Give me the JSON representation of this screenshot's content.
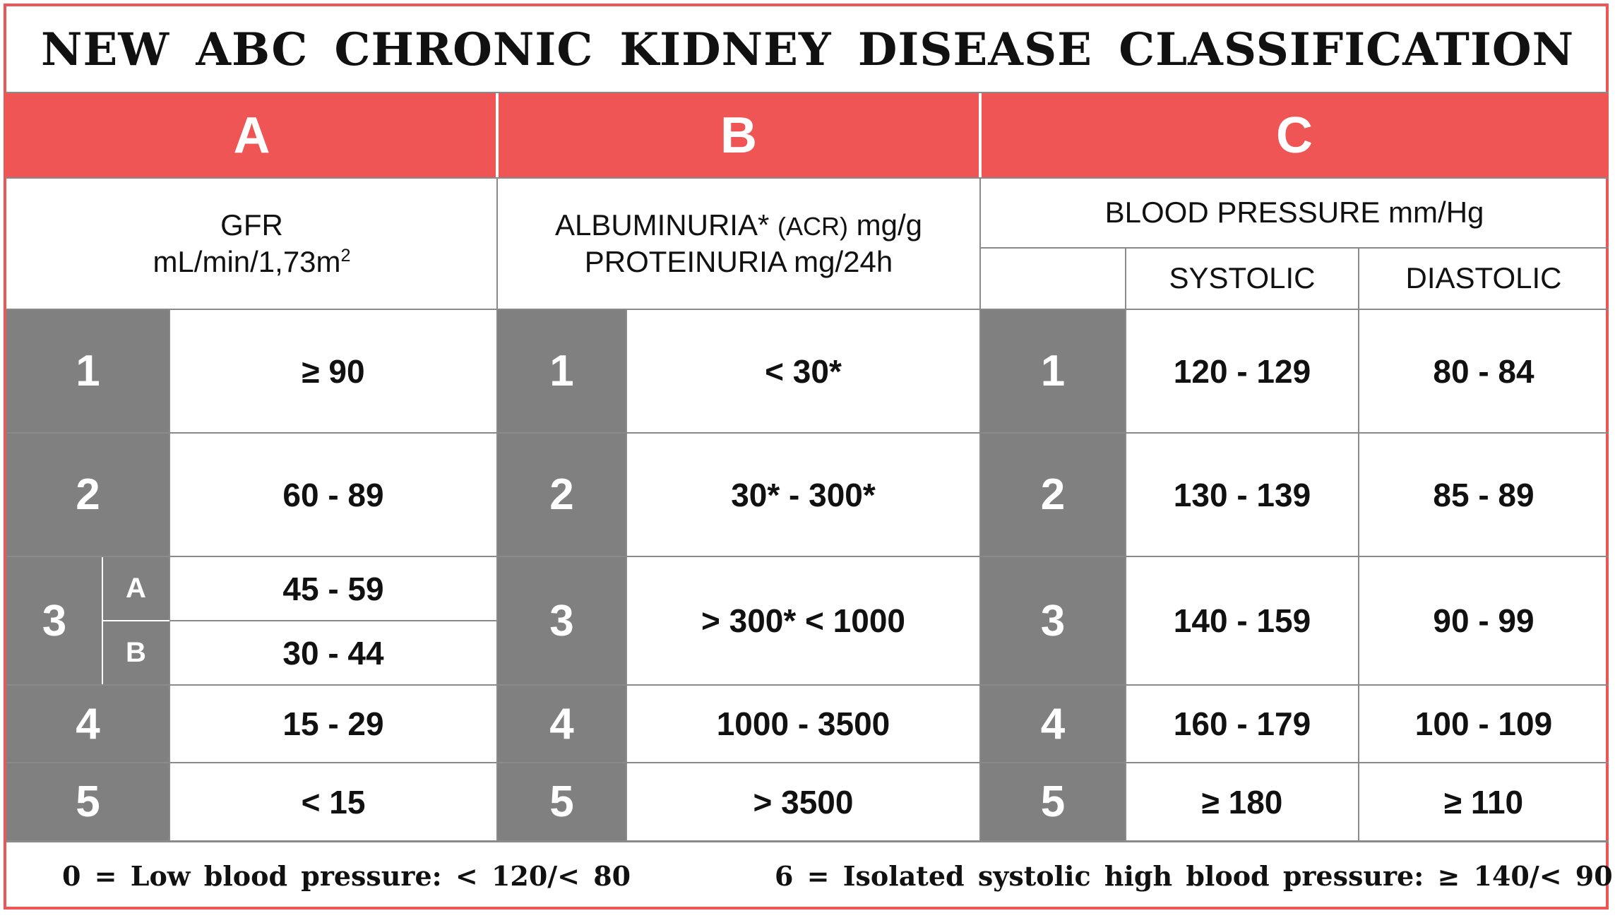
{
  "title": "NEW ABC CHRONIC KIDNEY DISEASE CLASSIFICATION",
  "colors": {
    "accent_red": "#f05555",
    "stage_gray": "#7f807f"
  },
  "columns": {
    "a": {
      "letter": "A",
      "header_line1": "GFR",
      "header_line2": "mL/min/1,73m",
      "header_sup": "2"
    },
    "b": {
      "letter": "B",
      "header_line1_main": "ALBUMINURIA*",
      "header_line1_small": "(ACR)",
      "header_line1_unit": "mg/g",
      "header_line2": "PROTEINURIA  mg/24h"
    },
    "c": {
      "letter": "C",
      "header_line1": "BLOOD  PRESSURE  mm/Hg",
      "systolic": "SYSTOLIC",
      "diastolic": "DIASTOLIC"
    }
  },
  "stages": {
    "s1": {
      "n": "1",
      "gfr": "≥  90",
      "alb": "< 30*",
      "sys": "120 - 129",
      "dia": "80 - 84"
    },
    "s2": {
      "n": "2",
      "gfr": "60 - 89",
      "alb": "30* - 300*",
      "sys": "130 - 139",
      "dia": "85 - 89"
    },
    "s3": {
      "n": "3",
      "sub_a": "A",
      "gfr_a": "45 - 59",
      "sub_b": "B",
      "gfr_b": "30 - 44",
      "alb": "> 300*  < 1000",
      "sys": "140 - 159",
      "dia": "90 - 99"
    },
    "s4": {
      "n": "4",
      "gfr": "15 - 29",
      "alb": "1000 - 3500",
      "sys": "160 - 179",
      "dia": "100 - 109"
    },
    "s5": {
      "n": "5",
      "gfr": "<  15",
      "alb": ">  3500",
      "sys": "≥ 180",
      "dia": "≥ 110"
    }
  },
  "footer": {
    "left": "0 = Low blood pressure: < 120/< 80",
    "right": "6 = Isolated systolic high blood pressure: ≥ 140/< 90"
  }
}
